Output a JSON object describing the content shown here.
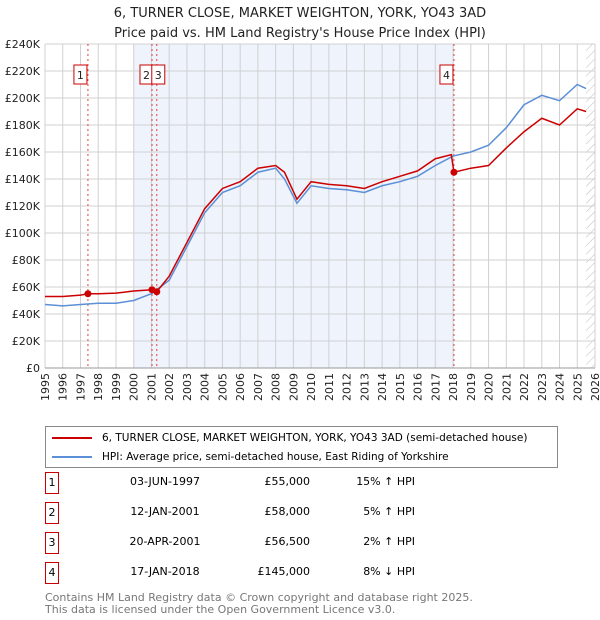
{
  "chart_data": {
    "type": "line",
    "title": "6, TURNER CLOSE, MARKET WEIGHTON, YORK, YO43 3AD",
    "subtitle": "Price paid vs. HM Land Registry's House Price Index (HPI)",
    "xlim": [
      1995,
      2026
    ],
    "ylim": [
      0,
      240000
    ],
    "y_ticks": [
      "£0",
      "£20K",
      "£40K",
      "£60K",
      "£80K",
      "£100K",
      "£120K",
      "£140K",
      "£160K",
      "£180K",
      "£200K",
      "£220K",
      "£240K"
    ],
    "x_ticks": [
      "1995",
      "1996",
      "1997",
      "1998",
      "1999",
      "2000",
      "2001",
      "2002",
      "2003",
      "2004",
      "2005",
      "2006",
      "2007",
      "2008",
      "2009",
      "2010",
      "2011",
      "2012",
      "2013",
      "2014",
      "2015",
      "2016",
      "2017",
      "2018",
      "2019",
      "2020",
      "2021",
      "2022",
      "2023",
      "2024",
      "2025",
      "2026"
    ],
    "series": [
      {
        "name": "6, TURNER CLOSE, MARKET WEIGHTON, YORK, YO43 3AD (semi-detached house)",
        "color": "#cc0000",
        "x": [
          1995,
          1996,
          1997,
          1997.42,
          1998,
          1999,
          2000,
          2001.03,
          2001.3,
          2002,
          2003,
          2004,
          2005,
          2006,
          2007,
          2008,
          2008.5,
          2009.2,
          2010,
          2011,
          2012,
          2013,
          2014,
          2015,
          2016,
          2017,
          2017.9,
          2018.05,
          2019,
          2020,
          2021,
          2022,
          2023,
          2024,
          2025,
          2025.5
        ],
        "y": [
          53000,
          53000,
          54000,
          55000,
          55000,
          55500,
          57000,
          58000,
          56500,
          68000,
          93000,
          118000,
          133000,
          138000,
          148000,
          150000,
          145000,
          125000,
          138000,
          136000,
          135000,
          133000,
          138000,
          142000,
          146000,
          155000,
          158000,
          145000,
          148000,
          150000,
          163000,
          175000,
          185000,
          180000,
          192000,
          190000
        ]
      },
      {
        "name": "HPI: Average price, semi-detached house, East Riding of Yorkshire",
        "color": "#5b8fd6",
        "x": [
          1995,
          1996,
          1997,
          1998,
          1999,
          2000,
          2001,
          2002,
          2003,
          2004,
          2005,
          2006,
          2007,
          2008,
          2008.5,
          2009.2,
          2010,
          2011,
          2012,
          2013,
          2014,
          2015,
          2016,
          2017,
          2018,
          2019,
          2020,
          2021,
          2022,
          2023,
          2024,
          2025,
          2025.5
        ],
        "y": [
          47000,
          46000,
          47000,
          48000,
          48000,
          50000,
          55000,
          65000,
          90000,
          115000,
          130000,
          135000,
          145000,
          148000,
          140000,
          122000,
          135000,
          133000,
          132000,
          130000,
          135000,
          138000,
          142000,
          150000,
          157000,
          160000,
          165000,
          178000,
          195000,
          202000,
          198000,
          210000,
          207000
        ]
      }
    ],
    "sales": [
      {
        "label": "1",
        "x": 1997.42,
        "y": 55000,
        "date": "03-JUN-1997",
        "price": "£55,000",
        "hpi": "15% ↑ HPI"
      },
      {
        "label": "2",
        "x": 2001.03,
        "y": 58000,
        "date": "12-JAN-2001",
        "price": "£58,000",
        "hpi": "5% ↑ HPI"
      },
      {
        "label": "3",
        "x": 2001.3,
        "y": 56500,
        "date": "20-APR-2001",
        "price": "£56,500",
        "hpi": "2% ↑ HPI"
      },
      {
        "label": "4",
        "x": 2018.05,
        "y": 145000,
        "date": "17-JAN-2018",
        "price": "£145,000",
        "hpi": "8% ↓ HPI"
      }
    ],
    "shaded_range": [
      2000,
      2018.05
    ],
    "forecast_from": 2025.5
  },
  "footer": {
    "line1": "Contains HM Land Registry data © Crown copyright and database right 2025.",
    "line2": "This data is licensed under the Open Government Licence v3.0."
  }
}
